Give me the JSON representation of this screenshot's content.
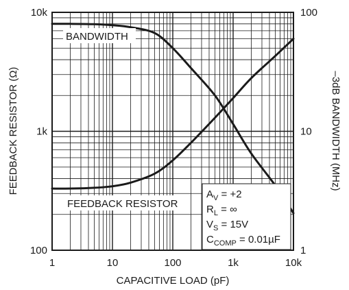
{
  "chart_data": {
    "type": "line",
    "xlabel": "CAPACITIVE LOAD (pF)",
    "ylabel_left": "FEEDBACK RESISTOR (Ω)",
    "ylabel_right": "–3dB BANDWIDTH (MHz)",
    "x_scale": "log",
    "y_scale_left": "log",
    "y_scale_right": "log",
    "xlim": [
      1,
      10000
    ],
    "ylim_left": [
      100,
      10000
    ],
    "ylim_right": [
      1,
      100
    ],
    "x_ticks": [
      "1",
      "10",
      "100",
      "1k",
      "10k"
    ],
    "y_ticks_left": [
      "100",
      "1k",
      "10k"
    ],
    "y_ticks_right": [
      "1",
      "10",
      "100"
    ],
    "grid": true,
    "series": [
      {
        "name": "BANDWIDTH",
        "axis": "right",
        "x": [
          1,
          2,
          5,
          10,
          20,
          50,
          100,
          200,
          500,
          1000,
          2000,
          5000,
          10000
        ],
        "y": [
          80,
          80,
          79.5,
          78,
          75,
          67,
          50,
          34,
          20,
          11.5,
          6.5,
          3.5,
          2.05
        ]
      },
      {
        "name": "FEEDBACK RESISTOR",
        "axis": "left",
        "x": [
          1,
          2,
          5,
          10,
          20,
          50,
          100,
          200,
          500,
          1000,
          2000,
          5000,
          10000
        ],
        "y": [
          330,
          330,
          335,
          345,
          370,
          440,
          570,
          800,
          1300,
          1900,
          2800,
          4300,
          6000
        ]
      }
    ],
    "conditions": [
      {
        "main": "A",
        "sub": "V",
        "rest": " = +2"
      },
      {
        "main": "R",
        "sub": "L",
        "rest": " = ∞"
      },
      {
        "main": "V",
        "sub": "S",
        "rest": " = 15V"
      },
      {
        "main": "C",
        "sub": "COMP",
        "rest": " = 0.01µF"
      }
    ]
  }
}
